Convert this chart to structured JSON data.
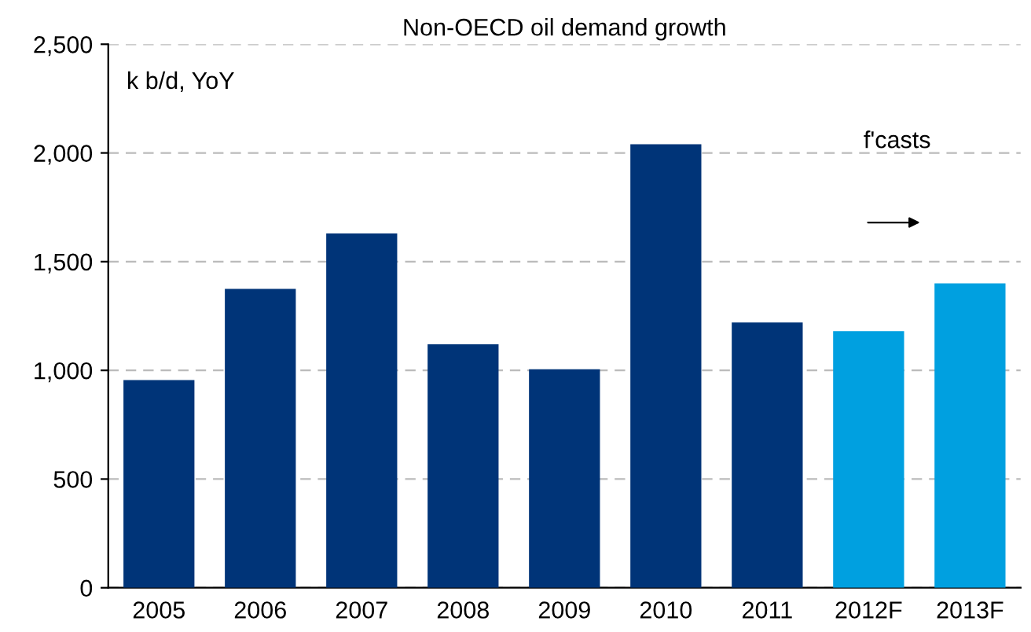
{
  "chart_data": {
    "type": "bar",
    "title": "Non-OECD oil demand growth",
    "ylabel": "k b/d, YoY",
    "categories": [
      "2005",
      "2006",
      "2007",
      "2008",
      "2009",
      "2010",
      "2011",
      "2012F",
      "2013F"
    ],
    "values": [
      955,
      1375,
      1630,
      1120,
      1005,
      2040,
      1220,
      1180,
      1400
    ],
    "colors": [
      "#003478",
      "#003478",
      "#003478",
      "#003478",
      "#003478",
      "#003478",
      "#003478",
      "#00a0e0",
      "#00a0e0"
    ],
    "ylim": [
      0,
      2500
    ],
    "yticks": [
      0,
      500,
      {
        "value": 1000,
        "label": "1,000"
      },
      {
        "value": 1500,
        "label": "1,500"
      },
      {
        "value": 2000,
        "label": "2,000"
      },
      {
        "value": 2500,
        "label": "2,500"
      }
    ],
    "grid": "y",
    "annotations": [
      "f'casts"
    ]
  }
}
